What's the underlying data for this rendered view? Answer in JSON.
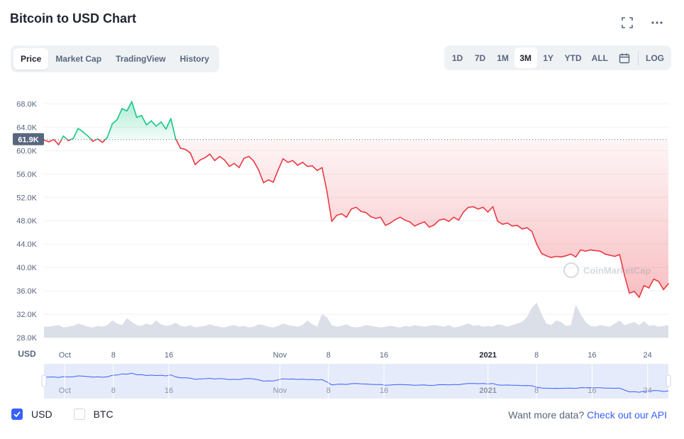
{
  "title": "Bitcoin to USD Chart",
  "tabs": [
    {
      "label": "Price",
      "active": true
    },
    {
      "label": "Market Cap",
      "active": false
    },
    {
      "label": "TradingView",
      "active": false
    },
    {
      "label": "History",
      "active": false
    }
  ],
  "ranges": [
    {
      "label": "1D",
      "active": false
    },
    {
      "label": "7D",
      "active": false
    },
    {
      "label": "1M",
      "active": false
    },
    {
      "label": "3M",
      "active": true
    },
    {
      "label": "1Y",
      "active": false
    },
    {
      "label": "YTD",
      "active": false
    },
    {
      "label": "ALL",
      "active": false
    }
  ],
  "log_label": "LOG",
  "icons": {
    "fullscreen": "fullscreen-icon",
    "more": "more-icon",
    "calendar": "calendar-icon"
  },
  "legend": {
    "usd_label": "USD",
    "usd_checked": true,
    "btc_label": "BTC",
    "btc_checked": false
  },
  "more_data": {
    "text": "Want more data?",
    "link": "Check out our API"
  },
  "watermark": "CoinMarketCap",
  "colors": {
    "up": "#16c784",
    "down": "#ea3943",
    "accent": "#3861fb",
    "volume": "#d7dbe4"
  },
  "chart_data": {
    "type": "line",
    "y_unit": "USD",
    "current_price_label": "61.9K",
    "reference_value": 61.9,
    "yticks": [
      "68.0K",
      "64.0K",
      "60.0K",
      "56.0K",
      "52.0K",
      "48.0K",
      "44.0K",
      "40.0K",
      "36.0K",
      "32.0K",
      "28.0K"
    ],
    "ylim": [
      28,
      70
    ],
    "xticks": [
      {
        "day": 3,
        "label": "Oct"
      },
      {
        "day": 10,
        "label": "8"
      },
      {
        "day": 18,
        "label": "16"
      },
      {
        "day": 34,
        "label": "Nov"
      },
      {
        "day": 41,
        "label": "8"
      },
      {
        "day": 49,
        "label": "16"
      },
      {
        "day": 64,
        "label": "2021"
      },
      {
        "day": 71,
        "label": "8"
      },
      {
        "day": 79,
        "label": "16"
      },
      {
        "day": 87,
        "label": "24"
      }
    ],
    "x_days": 90,
    "series": [
      {
        "values": [
          [
            0,
            61.8
          ],
          [
            1,
            61.5
          ],
          [
            2,
            61.9
          ],
          [
            3,
            61.0
          ],
          [
            4,
            62.5
          ],
          [
            5,
            61.7
          ],
          [
            6,
            62.1
          ],
          [
            7,
            63.8
          ],
          [
            8,
            63.2
          ],
          [
            9,
            62.5
          ],
          [
            10,
            61.6
          ],
          [
            11,
            62.0
          ],
          [
            12,
            61.4
          ],
          [
            13,
            62.3
          ],
          [
            14,
            64.6
          ],
          [
            15,
            65.3
          ],
          [
            16,
            67.2
          ],
          [
            17,
            66.8
          ],
          [
            18,
            68.4
          ],
          [
            19,
            65.7
          ],
          [
            20,
            66.0
          ],
          [
            21,
            64.4
          ],
          [
            22,
            65.1
          ],
          [
            23,
            64.2
          ],
          [
            24,
            64.9
          ],
          [
            25,
            63.7
          ],
          [
            26,
            65.5
          ],
          [
            27,
            62.0
          ],
          [
            28,
            60.4
          ],
          [
            29,
            60.2
          ],
          [
            30,
            59.6
          ],
          [
            31,
            57.6
          ],
          [
            32,
            58.4
          ],
          [
            33,
            58.8
          ],
          [
            34,
            59.4
          ],
          [
            35,
            58.3
          ],
          [
            36,
            59.0
          ],
          [
            37,
            58.4
          ],
          [
            38,
            57.3
          ],
          [
            39,
            57.8
          ],
          [
            40,
            57.1
          ],
          [
            41,
            58.7
          ],
          [
            42,
            59.0
          ],
          [
            43,
            58.2
          ],
          [
            44,
            56.7
          ],
          [
            45,
            54.5
          ],
          [
            46,
            55.0
          ],
          [
            47,
            54.6
          ],
          [
            48,
            56.7
          ],
          [
            49,
            58.6
          ],
          [
            50,
            58.0
          ],
          [
            51,
            58.3
          ],
          [
            52,
            57.5
          ],
          [
            53,
            58.0
          ],
          [
            54,
            57.3
          ],
          [
            55,
            57.4
          ],
          [
            56,
            56.6
          ],
          [
            57,
            57.1
          ],
          [
            58,
            53.0
          ],
          [
            59,
            47.9
          ],
          [
            60,
            48.9
          ],
          [
            61,
            49.2
          ],
          [
            62,
            48.6
          ],
          [
            63,
            50.0
          ],
          [
            64,
            50.3
          ],
          [
            65,
            49.6
          ],
          [
            66,
            49.4
          ],
          [
            67,
            48.7
          ],
          [
            68,
            48.4
          ],
          [
            69,
            48.6
          ],
          [
            70,
            47.2
          ],
          [
            71,
            47.6
          ],
          [
            72,
            48.2
          ],
          [
            73,
            48.6
          ],
          [
            74,
            48.1
          ],
          [
            75,
            47.8
          ],
          [
            76,
            47.1
          ],
          [
            77,
            47.5
          ],
          [
            78,
            47.8
          ],
          [
            79,
            46.9
          ],
          [
            80,
            47.3
          ],
          [
            81,
            48.1
          ],
          [
            82,
            48.3
          ],
          [
            83,
            47.9
          ],
          [
            84,
            48.6
          ],
          [
            85,
            48.1
          ],
          [
            86,
            49.5
          ],
          [
            87,
            50.3
          ],
          [
            88,
            50.4
          ],
          [
            89,
            50.0
          ],
          [
            90,
            50.3
          ],
          [
            91,
            49.5
          ],
          [
            92,
            50.4
          ],
          [
            93,
            47.9
          ],
          [
            94,
            47.4
          ],
          [
            95,
            47.6
          ],
          [
            96,
            47.1
          ],
          [
            97,
            47.2
          ],
          [
            98,
            46.6
          ],
          [
            99,
            46.8
          ],
          [
            100,
            46.2
          ],
          [
            101,
            44.0
          ],
          [
            102,
            42.4
          ],
          [
            103,
            42.0
          ],
          [
            104,
            41.7
          ],
          [
            105,
            41.9
          ],
          [
            106,
            41.8
          ],
          [
            107,
            42.0
          ],
          [
            108,
            42.3
          ],
          [
            109,
            41.8
          ],
          [
            110,
            43.0
          ],
          [
            111,
            42.8
          ],
          [
            112,
            43.0
          ],
          [
            113,
            42.9
          ],
          [
            114,
            42.8
          ],
          [
            115,
            42.3
          ],
          [
            116,
            42.1
          ],
          [
            117,
            41.9
          ],
          [
            118,
            42.2
          ],
          [
            119,
            38.7
          ],
          [
            120,
            35.6
          ],
          [
            121,
            35.9
          ],
          [
            122,
            34.9
          ],
          [
            123,
            36.9
          ],
          [
            124,
            36.5
          ],
          [
            125,
            38.0
          ],
          [
            126,
            37.6
          ],
          [
            127,
            36.2
          ],
          [
            128,
            37.2
          ]
        ]
      }
    ],
    "volume": [
      14,
      14,
      15,
      16,
      13,
      14,
      15,
      18,
      16,
      14,
      13,
      15,
      14,
      16,
      22,
      18,
      16,
      25,
      20,
      16,
      15,
      18,
      16,
      22,
      17,
      15,
      16,
      19,
      15,
      14,
      16,
      13,
      14,
      15,
      17,
      15,
      14,
      13,
      15,
      16,
      14,
      15,
      13,
      14,
      17,
      16,
      14,
      13,
      15,
      18,
      16,
      15,
      14,
      16,
      22,
      17,
      14,
      30,
      26,
      16,
      14,
      15,
      17,
      14,
      13,
      14,
      16,
      15,
      14,
      13,
      14,
      15,
      14,
      13,
      15,
      14,
      16,
      15,
      14,
      15,
      16,
      15,
      14,
      16,
      13,
      14,
      16,
      18,
      15,
      16,
      14,
      15,
      14,
      17,
      16,
      14,
      16,
      18,
      20,
      26,
      38,
      45,
      30,
      18,
      16,
      22,
      20,
      15,
      16,
      42,
      30,
      20,
      15,
      14,
      16,
      15,
      14,
      18,
      22,
      16,
      18,
      20,
      16,
      21,
      15,
      16,
      14,
      15,
      16
    ]
  }
}
